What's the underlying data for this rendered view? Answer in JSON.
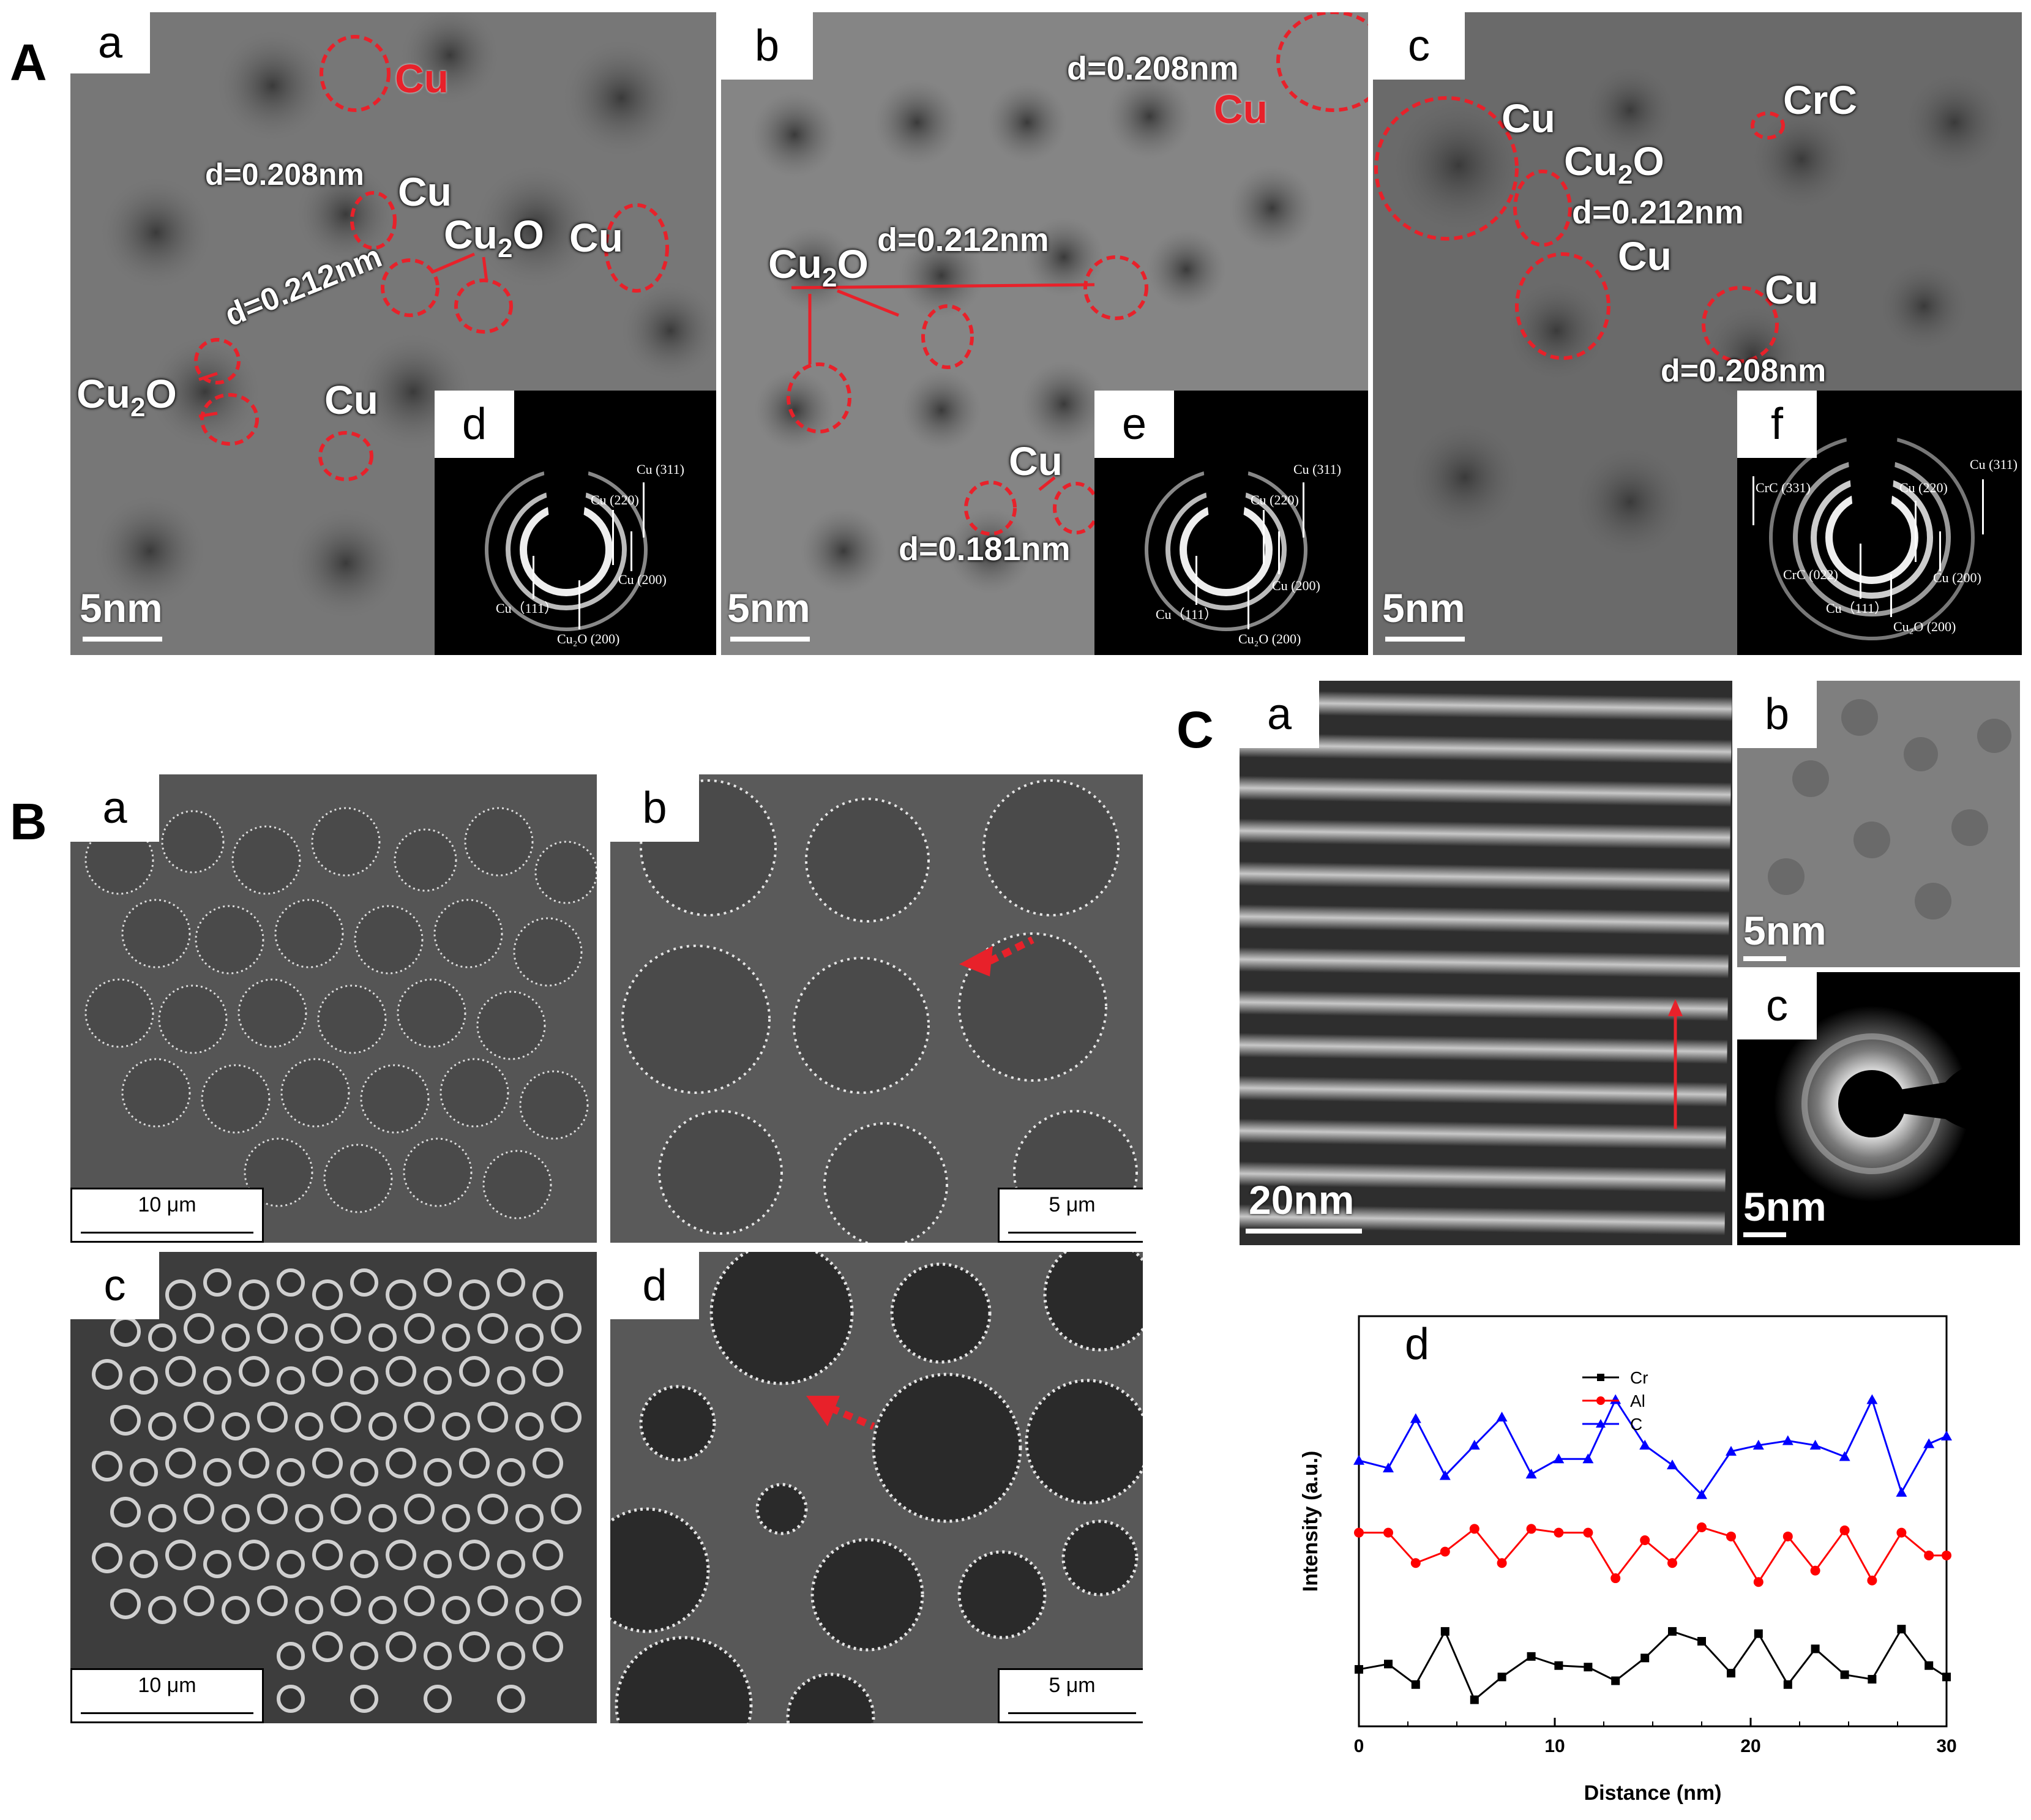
{
  "section_A": {
    "letter": "A",
    "panel_a": {
      "label": "a",
      "inset_label": "d",
      "annotations": [
        "Cu",
        "d=0.208nm",
        "Cu",
        "Cu",
        "d=0.212nm",
        "Cu",
        "Cu"
      ],
      "cu2o_labels": [
        "Cu",
        "Cu"
      ],
      "scale": "5nm",
      "saed_rings": [
        "Cu (311)",
        "Cu (220)",
        "Cu (200)",
        "Cu（111）",
        "Cu₂O (200)"
      ]
    },
    "panel_b": {
      "label": "b",
      "inset_label": "e",
      "annotations": [
        "d=0.208nm",
        "Cu",
        "d=0.212nm",
        "Cu",
        "d=0.181nm"
      ],
      "cu2o_labels": [
        "Cu"
      ],
      "scale": "5nm",
      "saed_rings": [
        "Cu (311)",
        "Cu (220)",
        "Cu (200)",
        "Cu（111）",
        "Cu₂O (200)"
      ]
    },
    "panel_c": {
      "label": "c",
      "inset_label": "f",
      "annotations": [
        "Cu",
        "CrC",
        "d=0.212nm",
        "Cu",
        "Cu",
        "d=0.208nm"
      ],
      "cu2o_labels": [
        "Cu"
      ],
      "scale": "5nm",
      "saed_rings": [
        "Cu (311)",
        "Cu (220)",
        "CrC (331)",
        "CrC (022)",
        "Cu (200)",
        "Cu（111）",
        "Cu₂O (200)"
      ]
    },
    "cu2o_subscript": "2",
    "cu2o_suffix": "O"
  },
  "section_B": {
    "letter": "B",
    "panels": [
      {
        "label": "a",
        "scale": "10 μm"
      },
      {
        "label": "b",
        "scale": "5 μm"
      },
      {
        "label": "c",
        "scale": "10 μm"
      },
      {
        "label": "d",
        "scale": "5 μm"
      }
    ]
  },
  "section_C": {
    "letter": "C",
    "panel_a": {
      "label": "a",
      "scale": "20nm"
    },
    "panel_b": {
      "label": "b",
      "scale": "5nm"
    },
    "panel_c": {
      "label": "c",
      "scale": "5nm"
    },
    "panel_d": {
      "label": "d"
    }
  },
  "colors": {
    "red_outline": "#e8212a",
    "cr_series": "#000000",
    "al_series": "#ff0000",
    "c_series": "#0000ff"
  },
  "chart_data": {
    "type": "line",
    "xlabel": "Distance (nm)",
    "ylabel": "Intensity (a.u.)",
    "xlim": [
      0,
      30
    ],
    "xticks": [
      0,
      10,
      20,
      30
    ],
    "legend_position": "top-center",
    "series": [
      {
        "name": "Cr",
        "color": "#000000",
        "marker": "square",
        "x": [
          0,
          1.5,
          2.9,
          4.4,
          5.9,
          7.3,
          8.8,
          10.2,
          11.7,
          13.1,
          14.6,
          16.0,
          17.5,
          19.0,
          20.4,
          21.9,
          23.3,
          24.8,
          26.2,
          27.7,
          29.1,
          30.0
        ],
        "y": [
          0.55,
          0.62,
          0.35,
          1.05,
          0.15,
          0.45,
          0.72,
          0.6,
          0.58,
          0.4,
          0.7,
          1.05,
          0.92,
          0.5,
          1.02,
          0.35,
          0.82,
          0.48,
          0.42,
          1.08,
          0.6,
          0.45
        ]
      },
      {
        "name": "Al",
        "color": "#ff0000",
        "marker": "circle",
        "x": [
          0,
          1.5,
          2.9,
          4.4,
          5.9,
          7.3,
          8.8,
          10.2,
          11.7,
          13.1,
          14.6,
          16.0,
          17.5,
          19.0,
          20.4,
          21.9,
          23.3,
          24.8,
          26.2,
          27.7,
          29.1,
          30.0
        ],
        "y": [
          2.35,
          2.35,
          1.95,
          2.1,
          2.4,
          1.95,
          2.4,
          2.35,
          2.35,
          1.75,
          2.25,
          1.95,
          2.42,
          2.3,
          1.7,
          2.3,
          1.85,
          2.38,
          1.72,
          2.35,
          2.05,
          2.05
        ]
      },
      {
        "name": "C",
        "color": "#0000ff",
        "marker": "triangle",
        "x": [
          0,
          1.5,
          2.9,
          4.4,
          5.9,
          7.3,
          8.8,
          10.2,
          11.7,
          13.1,
          14.6,
          16.0,
          17.5,
          19.0,
          20.4,
          21.9,
          23.3,
          24.8,
          26.2,
          27.7,
          29.1,
          30.0
        ],
        "y": [
          3.3,
          3.2,
          3.85,
          3.1,
          3.5,
          3.87,
          3.12,
          3.32,
          3.32,
          4.1,
          3.5,
          3.24,
          2.85,
          3.42,
          3.5,
          3.56,
          3.5,
          3.35,
          4.1,
          2.88,
          3.52,
          3.62
        ]
      }
    ]
  }
}
